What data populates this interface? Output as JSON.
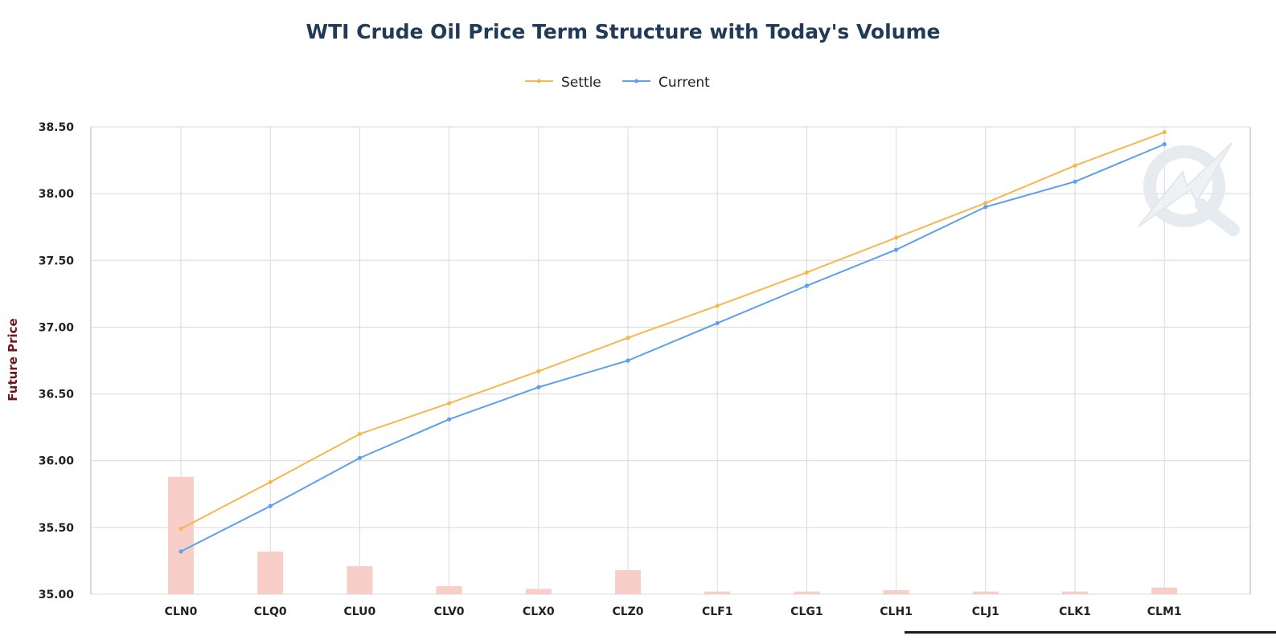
{
  "chart_data": {
    "type": "line",
    "title": "WTI Crude Oil Price Term Structure with Today's Volume",
    "ylabel": "Future Price",
    "xlabel": "",
    "ylim": [
      35.0,
      38.5
    ],
    "y_ticks": [
      "35.00",
      "35.50",
      "36.00",
      "36.50",
      "37.00",
      "37.50",
      "38.00",
      "38.50"
    ],
    "y_tick_values": [
      35.0,
      35.5,
      36.0,
      36.5,
      37.0,
      37.5,
      38.0,
      38.5
    ],
    "categories": [
      "CLN0",
      "CLQ0",
      "CLU0",
      "CLV0",
      "CLX0",
      "CLZ0",
      "CLF1",
      "CLG1",
      "CLH1",
      "CLJ1",
      "CLK1",
      "CLM1"
    ],
    "series": [
      {
        "name": "Settle",
        "color": "#f5b84e",
        "values": [
          35.49,
          35.84,
          36.2,
          36.43,
          36.67,
          36.92,
          37.16,
          37.41,
          37.67,
          37.93,
          38.21,
          38.46
        ]
      },
      {
        "name": "Current",
        "color": "#5d9ff0",
        "values": [
          35.32,
          35.66,
          36.02,
          36.31,
          36.55,
          36.75,
          37.03,
          37.31,
          37.58,
          37.9,
          38.09,
          38.37
        ]
      }
    ],
    "volume_bars": {
      "color": "#f7cfc8",
      "values": [
        35.88,
        35.32,
        35.21,
        35.06,
        35.04,
        35.18,
        35.02,
        35.02,
        35.03,
        35.02,
        35.02,
        35.05
      ]
    },
    "grid": true,
    "legend_position": "top-center",
    "colors": {
      "title": "#203a57",
      "axis_title": "#6e1818",
      "grid": "#d9d9d9",
      "axis": "#b3b3b3",
      "tick_text": "#222222",
      "watermark": "#e5e9ee"
    }
  }
}
